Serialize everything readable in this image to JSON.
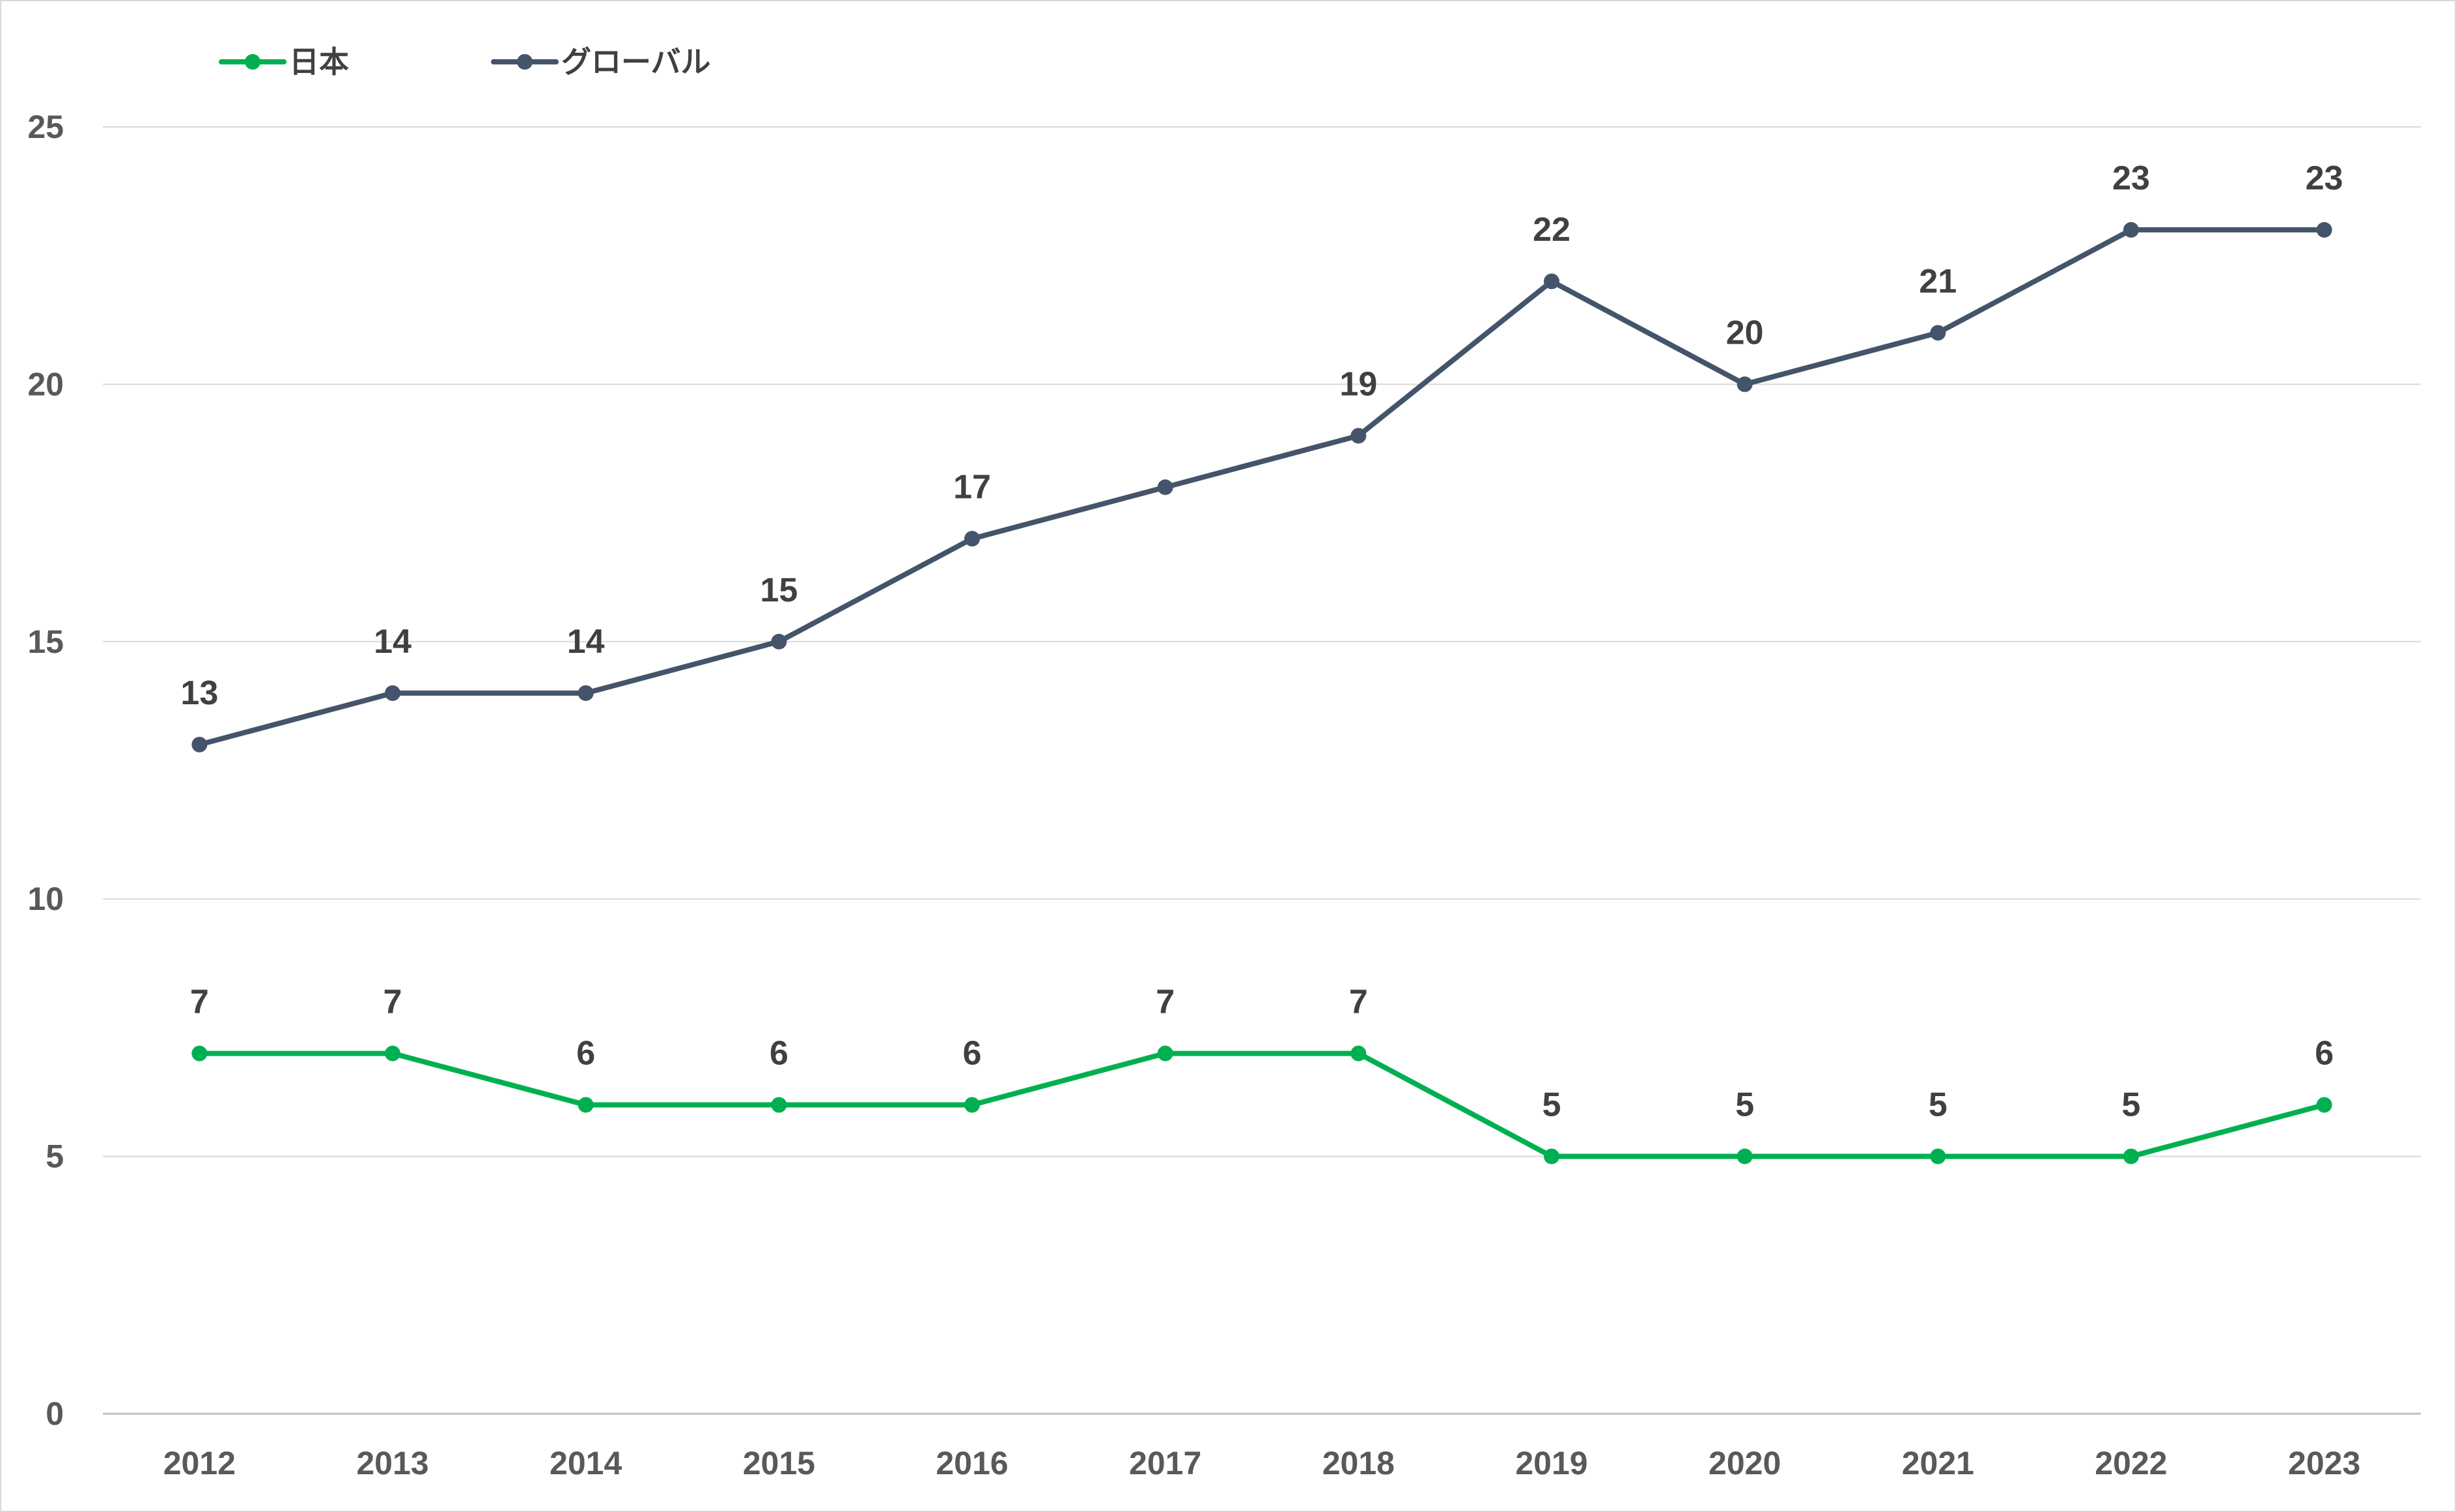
{
  "chart_data": {
    "type": "line",
    "title": "",
    "xlabel": "",
    "ylabel": "",
    "categories": [
      "2012",
      "2013",
      "2014",
      "2015",
      "2016",
      "2017",
      "2018",
      "2019",
      "2020",
      "2021",
      "2022",
      "2023"
    ],
    "ylim": [
      0,
      25
    ],
    "yticks": [
      0,
      5,
      10,
      15,
      20,
      25
    ],
    "grid": true,
    "legend_position": "top-left",
    "series": [
      {
        "name": "日本",
        "color": "#00b050",
        "values": [
          7,
          7,
          6,
          6,
          6,
          7,
          7,
          5,
          5,
          5,
          5,
          6
        ],
        "labels": [
          "7",
          "7",
          "6",
          "6",
          "6",
          "7",
          "7",
          "5",
          "5",
          "5",
          "5",
          "6"
        ]
      },
      {
        "name": "グローバル",
        "color": "#44546a",
        "values": [
          13,
          14,
          14,
          15,
          17,
          18,
          19,
          22,
          20,
          21,
          23,
          23
        ],
        "labels": [
          "13",
          "14",
          "14",
          "15",
          "17",
          "",
          "19",
          "22",
          "20",
          "21",
          "23",
          "23"
        ]
      }
    ]
  }
}
